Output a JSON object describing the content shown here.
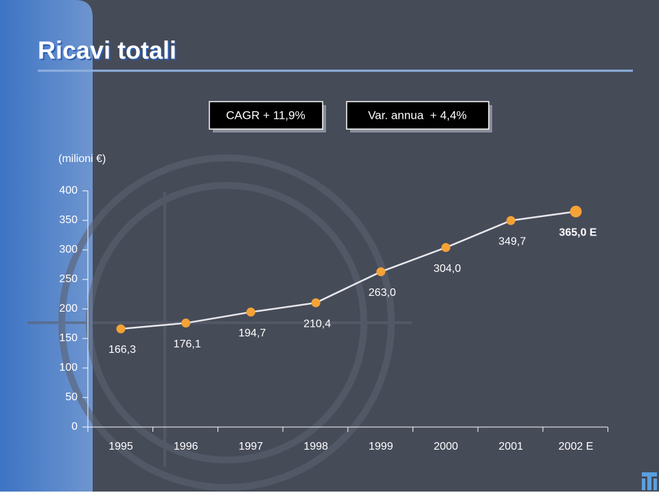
{
  "chart_data": {
    "type": "line",
    "title": "Ricavi totali",
    "annotations": [
      "CAGR + 11,9%",
      "Var. annua  + 4,4%"
    ],
    "y_label": "(milioni €)",
    "categories": [
      "1995",
      "1996",
      "1997",
      "1998",
      "1999",
      "2000",
      "2001",
      "2002 E"
    ],
    "values": [
      166.3,
      176.1,
      194.7,
      210.4,
      263.0,
      304.0,
      349.7,
      365.0
    ],
    "value_labels": [
      "166,3",
      "176,1",
      "194,7",
      "210,4",
      "263,0",
      "304,0",
      "349,7",
      "365,0 E"
    ],
    "color": "#f5a236",
    "line_color": "#e8e8ec",
    "ylim": [
      0,
      400
    ],
    "yticks": [
      0,
      50,
      100,
      150,
      200,
      250,
      300,
      350,
      400
    ]
  }
}
